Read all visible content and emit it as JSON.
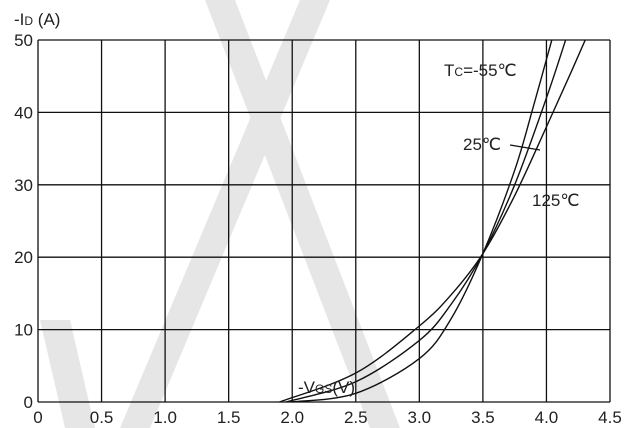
{
  "chart_data": {
    "type": "line",
    "title": "",
    "ylabel": {
      "prefix": "-I",
      "sub": "D",
      "suffix": " (A)"
    },
    "xlabel": {
      "prefix": "-V",
      "sub": "GS",
      "suffix": "(V)"
    },
    "xlim": [
      0,
      4.5
    ],
    "ylim": [
      0,
      50
    ],
    "x_ticks": [
      "0",
      "0.5",
      "1.0",
      "1.5",
      "2.0",
      "2.5",
      "3.0",
      "3.5",
      "4.0",
      "4.5"
    ],
    "y_ticks": [
      "0",
      "10",
      "20",
      "30",
      "40",
      "50"
    ],
    "grid": true,
    "colors": {
      "line": "#111111",
      "grid": "#111111",
      "watermark": "#e6e6e6"
    },
    "series": [
      {
        "name": "Tc=-55℃",
        "label_prefix": "T",
        "label_sub": "C",
        "label_suffix": "=-55℃",
        "points": [
          [
            2.0,
            0
          ],
          [
            2.5,
            1.2
          ],
          [
            3.0,
            6.0
          ],
          [
            3.25,
            11.5
          ],
          [
            3.5,
            20.5
          ],
          [
            3.75,
            32
          ],
          [
            3.9,
            41
          ],
          [
            4.05,
            50.5
          ]
        ]
      },
      {
        "name": "25℃",
        "label": "25℃",
        "points": [
          [
            1.95,
            0
          ],
          [
            2.5,
            2.8
          ],
          [
            3.0,
            8.5
          ],
          [
            3.25,
            13.5
          ],
          [
            3.5,
            20.5
          ],
          [
            3.75,
            30
          ],
          [
            4.0,
            42
          ],
          [
            4.16,
            50.5
          ]
        ]
      },
      {
        "name": "125℃",
        "label": "125℃",
        "points": [
          [
            1.9,
            0
          ],
          [
            2.5,
            4.0
          ],
          [
            3.0,
            10.5
          ],
          [
            3.25,
            14.8
          ],
          [
            3.5,
            20.5
          ],
          [
            3.75,
            28.5
          ],
          [
            4.0,
            38
          ],
          [
            4.2,
            45.8
          ],
          [
            4.33,
            51
          ]
        ]
      }
    ]
  }
}
